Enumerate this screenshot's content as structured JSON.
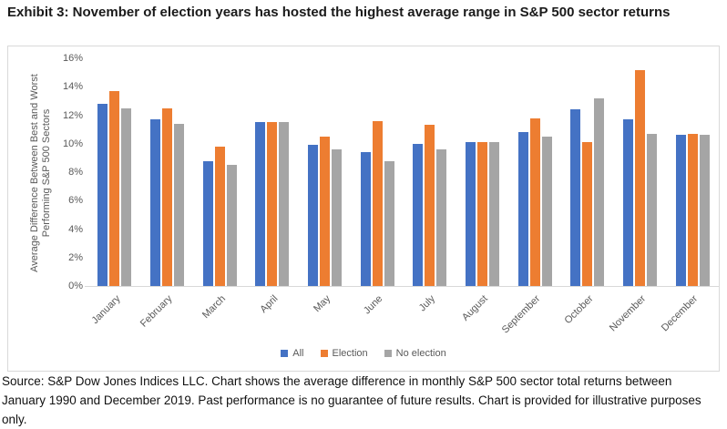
{
  "title": "Exhibit 3: November of election years has hosted the highest average range in S&P 500 sector returns",
  "footer": "Source: S&P Dow Jones Indices LLC. Chart shows the average difference in monthly S&P 500 sector total returns between January 1990 and December 2019. Past performance is no guarantee of future results. Chart is provided for illustrative purposes only.",
  "colors": {
    "all": "#4472C4",
    "election": "#ED7D31",
    "no_election": "#A5A5A5",
    "axis_line": "#D9D9D9",
    "tick_text": "#595959"
  },
  "chart_data": {
    "type": "bar",
    "title": "",
    "xlabel": "",
    "ylabel": "Average Difference Between Best and Worst Performing S&P 500 Sectors",
    "ylabel_line1": "Average Difference Between Best and Worst",
    "ylabel_line2": "Performing  S&P 500 Sectors",
    "categories": [
      "January",
      "February",
      "March",
      "April",
      "May",
      "June",
      "July",
      "August",
      "September",
      "October",
      "November",
      "December"
    ],
    "series": [
      {
        "name": "All",
        "color": "#4472C4",
        "values": [
          12.8,
          11.7,
          8.8,
          11.5,
          9.9,
          9.4,
          10.0,
          10.1,
          10.8,
          12.4,
          11.7,
          10.6
        ]
      },
      {
        "name": "Election",
        "color": "#ED7D31",
        "values": [
          13.7,
          12.5,
          9.8,
          11.5,
          10.5,
          11.6,
          11.3,
          10.1,
          11.8,
          10.1,
          15.2,
          10.7
        ]
      },
      {
        "name": "No election",
        "color": "#A5A5A5",
        "values": [
          12.5,
          11.4,
          8.5,
          11.5,
          9.6,
          8.8,
          9.6,
          10.1,
          10.5,
          13.2,
          10.7,
          10.6
        ]
      }
    ],
    "ylim": [
      0,
      16
    ],
    "ytick_step": 2,
    "ytick_labels": [
      "16%",
      "14%",
      "12%",
      "10%",
      "8%",
      "6%",
      "4%",
      "2%",
      "0%"
    ],
    "grid": false,
    "legend_position": "bottom"
  }
}
